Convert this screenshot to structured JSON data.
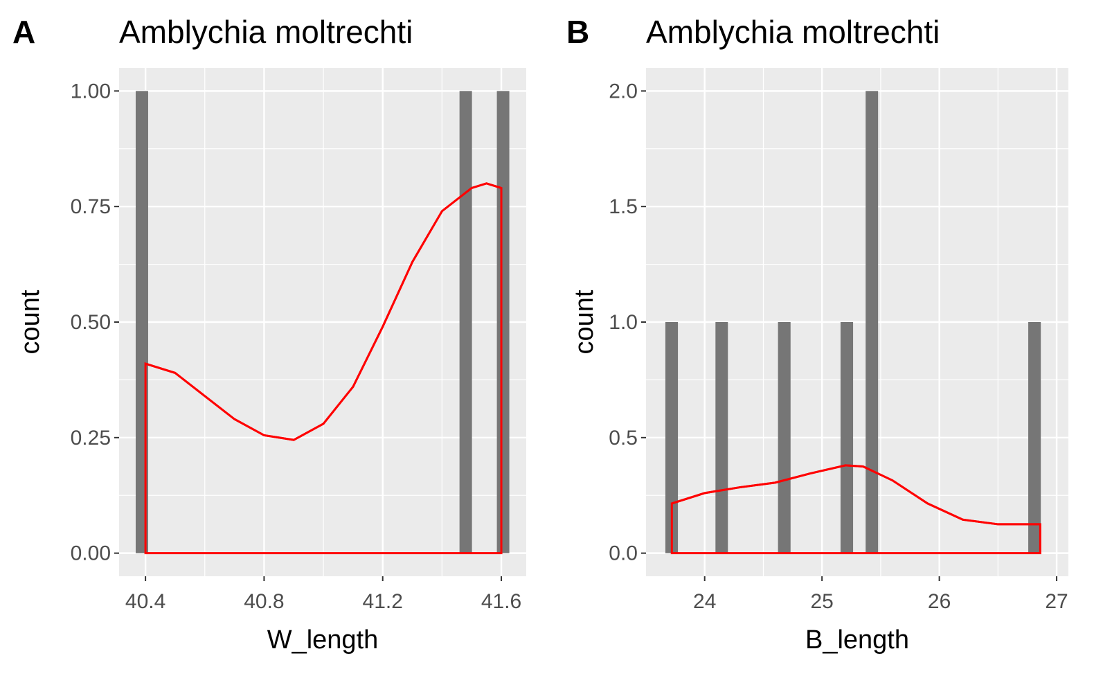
{
  "chart_data": [
    {
      "type": "histogram",
      "tag": "A",
      "title": "Amblychia moltrechti",
      "xlabel": "W_length",
      "ylabel": "count",
      "xlim": [
        40.311,
        41.684
      ],
      "ylim": [
        -0.05,
        1.05
      ],
      "xticks": [
        40.4,
        40.8,
        41.2,
        41.6
      ],
      "yticks": [
        {
          "value": 0,
          "label": "0.00"
        },
        0.25,
        {
          "value": 0.5,
          "label": "0.50"
        },
        0.75,
        {
          "value": 1,
          "label": "1.00"
        }
      ],
      "bins": [
        40.367,
        40.409,
        40.451,
        40.493,
        40.535,
        40.577,
        40.619,
        40.661,
        40.703,
        40.745,
        40.787,
        40.829,
        40.871,
        40.913,
        40.955,
        40.997,
        41.039,
        41.081,
        41.123,
        41.165,
        41.207,
        41.249,
        41.291,
        41.333,
        41.375,
        41.417,
        41.459,
        41.501,
        41.543,
        41.585,
        41.627
      ],
      "counts": [
        1,
        0,
        0,
        0,
        0,
        0,
        0,
        0,
        0,
        0,
        0,
        0,
        0,
        0,
        0,
        0,
        0,
        0,
        0,
        0,
        0,
        0,
        0,
        0,
        0,
        0,
        1,
        0,
        0,
        1
      ],
      "color": "#767676",
      "density": {
        "color": "#ff0000",
        "x": [
          40.4,
          40.5,
          40.6,
          40.7,
          40.8,
          40.9,
          41.0,
          41.1,
          41.2,
          41.3,
          41.4,
          41.5,
          41.55,
          41.6
        ],
        "y": [
          0.41,
          0.39,
          0.34,
          0.29,
          0.255,
          0.245,
          0.28,
          0.36,
          0.49,
          0.63,
          0.74,
          0.79,
          0.8,
          0.79
        ]
      },
      "grid": true
    },
    {
      "type": "histogram",
      "tag": "B",
      "title": "Amblychia moltrechti",
      "xlabel": "B_length",
      "ylabel": "count",
      "xlim": [
        23.5,
        27.1
      ],
      "ylim": [
        -0.1,
        2.1
      ],
      "xticks": [
        24,
        25,
        26,
        27
      ],
      "yticks": [
        {
          "value": 0,
          "label": "0.0"
        },
        0.5,
        {
          "value": 1,
          "label": "1.0"
        },
        1.5,
        {
          "value": 2,
          "label": "2.0"
        }
      ],
      "bins": [
        23.665,
        23.772,
        23.878,
        23.985,
        24.092,
        24.198,
        24.305,
        24.412,
        24.518,
        24.625,
        24.732,
        24.838,
        24.945,
        25.052,
        25.158,
        25.265,
        25.372,
        25.478,
        25.585,
        25.692,
        25.798,
        25.905,
        26.012,
        26.118,
        26.225,
        26.332,
        26.438,
        26.545,
        26.652,
        26.758,
        26.865
      ],
      "counts": [
        1,
        0,
        0,
        0,
        1,
        0,
        0,
        0,
        0,
        1,
        0,
        0,
        0,
        0,
        1,
        0,
        2,
        0,
        0,
        0,
        0,
        0,
        0,
        0,
        0,
        0,
        0,
        0,
        0,
        1
      ],
      "color": "#767676",
      "density": {
        "color": "#ff0000",
        "x": [
          23.72,
          24.0,
          24.3,
          24.6,
          24.9,
          25.2,
          25.35,
          25.6,
          25.9,
          26.2,
          26.5,
          26.86
        ],
        "y": [
          0.215,
          0.26,
          0.285,
          0.305,
          0.345,
          0.38,
          0.375,
          0.315,
          0.215,
          0.145,
          0.125,
          0.125
        ]
      },
      "grid": true
    }
  ]
}
